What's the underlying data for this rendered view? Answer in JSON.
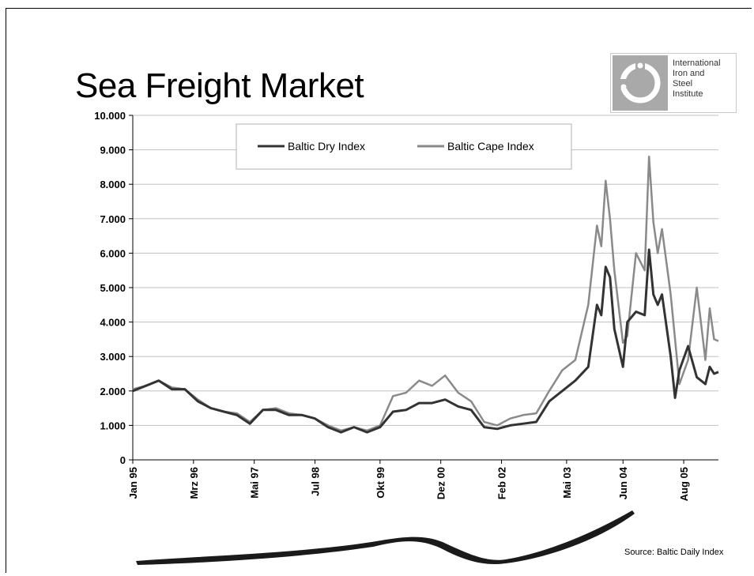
{
  "slide": {
    "title": "Sea Freight Market",
    "logo": {
      "emblem": "iisi-emblem-icon",
      "lines": [
        "International",
        "Iron and",
        "Steel",
        "Institute"
      ]
    },
    "source": "Source: Baltic Daily Index",
    "decoration": "swoosh-brush-icon"
  },
  "chart_data": {
    "type": "line",
    "title": "",
    "xlabel": "",
    "ylabel": "",
    "ylim": [
      0,
      10000
    ],
    "yticks": [
      0,
      1000,
      2000,
      3000,
      4000,
      5000,
      6000,
      7000,
      8000,
      9000,
      10000
    ],
    "ytick_labels": [
      "0",
      "1.000",
      "2.000",
      "3.000",
      "4.000",
      "5.000",
      "6.000",
      "7.000",
      "8.000",
      "9.000",
      "10.000"
    ],
    "x_tick_labels": [
      "Jan 95",
      "Mrz 96",
      "Mai 97",
      "Jul 98",
      "Okt 99",
      "Dez 00",
      "Feb 02",
      "Mai 03",
      "Jun 04",
      "Aug 05"
    ],
    "x_tick_dates": [
      "1995-01",
      "1996-03",
      "1997-05",
      "1998-07",
      "1999-10",
      "2000-12",
      "2002-02",
      "2003-05",
      "2004-06",
      "2005-08"
    ],
    "xlim": [
      "1995-01",
      "2006-04"
    ],
    "grid": "horizontal",
    "legend_position": "top-center",
    "colors": {
      "dry": "#333333",
      "cape": "#8a8a8a",
      "grid": "#c0c0c0"
    },
    "series": [
      {
        "name": "Baltic Cape Index",
        "points": [
          [
            "1995-01",
            2050
          ],
          [
            "1995-04",
            2150
          ],
          [
            "1995-07",
            2300
          ],
          [
            "1995-10",
            2100
          ],
          [
            "1996-01",
            2050
          ],
          [
            "1996-04",
            1750
          ],
          [
            "1996-07",
            1500
          ],
          [
            "1996-10",
            1400
          ],
          [
            "1997-01",
            1350
          ],
          [
            "1997-04",
            1100
          ],
          [
            "1997-07",
            1450
          ],
          [
            "1997-10",
            1500
          ],
          [
            "1998-01",
            1350
          ],
          [
            "1998-04",
            1300
          ],
          [
            "1998-07",
            1200
          ],
          [
            "1998-10",
            1000
          ],
          [
            "1999-01",
            850
          ],
          [
            "1999-04",
            950
          ],
          [
            "1999-07",
            850
          ],
          [
            "1999-10",
            1000
          ],
          [
            "2000-01",
            1850
          ],
          [
            "2000-04",
            1950
          ],
          [
            "2000-07",
            2300
          ],
          [
            "2000-10",
            2150
          ],
          [
            "2001-01",
            2450
          ],
          [
            "2001-04",
            1950
          ],
          [
            "2001-07",
            1700
          ],
          [
            "2001-10",
            1100
          ],
          [
            "2002-01",
            1000
          ],
          [
            "2002-04",
            1200
          ],
          [
            "2002-07",
            1300
          ],
          [
            "2002-10",
            1350
          ],
          [
            "2003-01",
            2000
          ],
          [
            "2003-04",
            2600
          ],
          [
            "2003-07",
            2900
          ],
          [
            "2003-10",
            4500
          ],
          [
            "2003-12",
            6800
          ],
          [
            "2004-01",
            6200
          ],
          [
            "2004-02",
            8100
          ],
          [
            "2004-03",
            7000
          ],
          [
            "2004-04",
            5500
          ],
          [
            "2004-06",
            3400
          ],
          [
            "2004-07",
            3600
          ],
          [
            "2004-09",
            6000
          ],
          [
            "2004-11",
            5500
          ],
          [
            "2004-12",
            8800
          ],
          [
            "2005-01",
            6900
          ],
          [
            "2005-02",
            6000
          ],
          [
            "2005-03",
            6700
          ],
          [
            "2005-05",
            4800
          ],
          [
            "2005-06",
            3500
          ],
          [
            "2005-07",
            2200
          ],
          [
            "2005-09",
            2900
          ],
          [
            "2005-11",
            5000
          ],
          [
            "2006-01",
            2900
          ],
          [
            "2006-02",
            4400
          ],
          [
            "2006-03",
            3500
          ],
          [
            "2006-04",
            3450
          ]
        ]
      },
      {
        "name": "Baltic Dry Index",
        "points": [
          [
            "1995-01",
            2000
          ],
          [
            "1995-04",
            2150
          ],
          [
            "1995-07",
            2300
          ],
          [
            "1995-10",
            2050
          ],
          [
            "1996-01",
            2050
          ],
          [
            "1996-04",
            1700
          ],
          [
            "1996-07",
            1500
          ],
          [
            "1996-10",
            1400
          ],
          [
            "1997-01",
            1300
          ],
          [
            "1997-04",
            1050
          ],
          [
            "1997-07",
            1450
          ],
          [
            "1997-10",
            1450
          ],
          [
            "1998-01",
            1300
          ],
          [
            "1998-04",
            1300
          ],
          [
            "1998-07",
            1200
          ],
          [
            "1998-10",
            950
          ],
          [
            "1999-01",
            800
          ],
          [
            "1999-04",
            950
          ],
          [
            "1999-07",
            800
          ],
          [
            "1999-10",
            950
          ],
          [
            "2000-01",
            1400
          ],
          [
            "2000-04",
            1450
          ],
          [
            "2000-07",
            1650
          ],
          [
            "2000-10",
            1650
          ],
          [
            "2001-01",
            1750
          ],
          [
            "2001-04",
            1550
          ],
          [
            "2001-07",
            1450
          ],
          [
            "2001-10",
            950
          ],
          [
            "2002-01",
            900
          ],
          [
            "2002-04",
            1000
          ],
          [
            "2002-07",
            1050
          ],
          [
            "2002-10",
            1100
          ],
          [
            "2003-01",
            1700
          ],
          [
            "2003-04",
            2000
          ],
          [
            "2003-07",
            2300
          ],
          [
            "2003-10",
            2700
          ],
          [
            "2003-12",
            4500
          ],
          [
            "2004-01",
            4200
          ],
          [
            "2004-02",
            5600
          ],
          [
            "2004-03",
            5300
          ],
          [
            "2004-04",
            3800
          ],
          [
            "2004-06",
            2700
          ],
          [
            "2004-07",
            4000
          ],
          [
            "2004-09",
            4300
          ],
          [
            "2004-11",
            4200
          ],
          [
            "2004-12",
            6100
          ],
          [
            "2005-01",
            4800
          ],
          [
            "2005-02",
            4500
          ],
          [
            "2005-03",
            4800
          ],
          [
            "2005-05",
            3000
          ],
          [
            "2005-06",
            1800
          ],
          [
            "2005-07",
            2600
          ],
          [
            "2005-09",
            3300
          ],
          [
            "2005-11",
            2400
          ],
          [
            "2006-01",
            2200
          ],
          [
            "2006-02",
            2700
          ],
          [
            "2006-03",
            2500
          ],
          [
            "2006-04",
            2550
          ]
        ]
      }
    ]
  }
}
